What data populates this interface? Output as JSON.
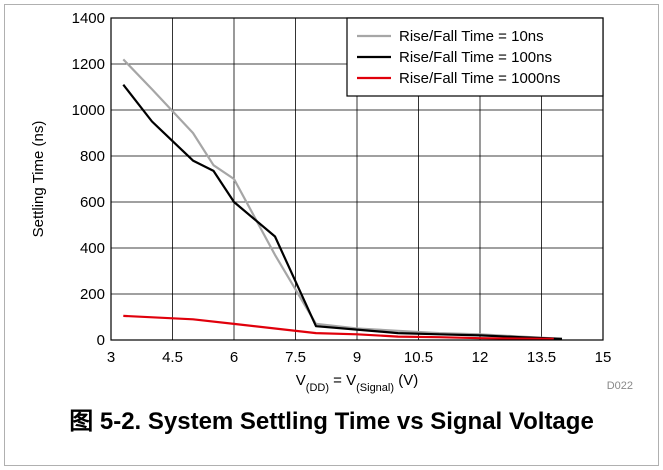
{
  "caption": "图 5-2. System Settling Time vs Signal Voltage",
  "figure_code": "D022",
  "chart_data": {
    "type": "line",
    "ylabel": "Settling Time (ns)",
    "xlabel": {
      "parts": [
        {
          "text": "V",
          "sub": false
        },
        {
          "text": "(DD)",
          "sub": true
        },
        {
          "text": " = V",
          "sub": false
        },
        {
          "text": "(Signal)",
          "sub": true
        },
        {
          "text": " (V)",
          "sub": false
        }
      ]
    },
    "xlim": [
      3,
      15
    ],
    "ylim": [
      0,
      1400
    ],
    "xticks": [
      "3",
      "4.5",
      "6",
      "7.5",
      "9",
      "10.5",
      "12",
      "13.5",
      "15"
    ],
    "yticks": [
      "0",
      "200",
      "400",
      "600",
      "800",
      "1000",
      "1200",
      "1400"
    ],
    "grid": true,
    "legend_position": "top-right",
    "series": [
      {
        "name": "Rise/Fall Time = 10ns",
        "color": "#a6a6a6",
        "x": [
          3.3,
          4,
          5,
          5.5,
          6,
          7,
          8,
          9,
          10,
          11,
          12,
          13,
          14
        ],
        "y": [
          1220,
          1090,
          900,
          760,
          700,
          370,
          70,
          50,
          40,
          30,
          25,
          15,
          5
        ]
      },
      {
        "name": "Rise/Fall Time = 100ns",
        "color": "#000000",
        "x": [
          3.3,
          4,
          5,
          5.5,
          6,
          7,
          8,
          9,
          10,
          11,
          12,
          13,
          14
        ],
        "y": [
          1110,
          950,
          780,
          735,
          600,
          450,
          60,
          45,
          30,
          25,
          20,
          12,
          5
        ]
      },
      {
        "name": "Rise/Fall Time = 1000ns",
        "color": "#e0000b",
        "x": [
          3.3,
          5,
          6,
          7,
          8,
          9,
          10,
          11,
          12,
          13,
          13.8
        ],
        "y": [
          105,
          90,
          70,
          50,
          30,
          25,
          15,
          12,
          8,
          6,
          5
        ]
      }
    ]
  }
}
